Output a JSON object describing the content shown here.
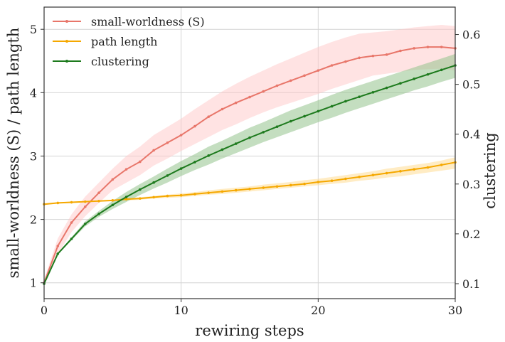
{
  "chart_data": {
    "type": "line",
    "title": "",
    "xlabel": "rewiring steps",
    "ylabel_left": "small-worldness (S) / path length",
    "ylabel_right": "clustering",
    "xlim": [
      0,
      30
    ],
    "ylim_left": [
      0.75,
      5.35
    ],
    "ylim_right": [
      0.07,
      0.655
    ],
    "x_ticks": [
      0,
      10,
      20,
      30
    ],
    "y_ticks_left": [
      1,
      2,
      3,
      4,
      5
    ],
    "y_ticks_right": [
      0.1,
      0.2,
      0.3,
      0.4,
      0.5,
      0.6
    ],
    "x_tick_labels": [
      "0",
      "10",
      "20",
      "30"
    ],
    "y_tick_labels_left": [
      "1",
      "2",
      "3",
      "4",
      "5"
    ],
    "y_tick_labels_right": [
      "0.1",
      "0.2",
      "0.3",
      "0.4",
      "0.5",
      "0.6"
    ],
    "grid": true,
    "legend_position": "top-left",
    "x": [
      0,
      1,
      2,
      3,
      4,
      5,
      6,
      7,
      8,
      9,
      10,
      11,
      12,
      13,
      14,
      15,
      16,
      17,
      18,
      19,
      20,
      21,
      22,
      23,
      24,
      25,
      26,
      27,
      28,
      29,
      30
    ],
    "series": [
      {
        "name": "small-worldness (S)",
        "axis": "left",
        "color": "#e8766a",
        "band_color": "#ffc7c7",
        "values": [
          1.0,
          1.58,
          1.95,
          2.2,
          2.42,
          2.63,
          2.79,
          2.91,
          3.09,
          3.21,
          3.33,
          3.47,
          3.62,
          3.74,
          3.84,
          3.93,
          4.02,
          4.11,
          4.19,
          4.27,
          4.35,
          4.43,
          4.49,
          4.55,
          4.58,
          4.6,
          4.66,
          4.7,
          4.72,
          4.72,
          4.7
        ],
        "band_lower": [
          0.95,
          1.45,
          1.8,
          2.05,
          2.26,
          2.46,
          2.58,
          2.7,
          2.85,
          2.96,
          3.08,
          3.19,
          3.3,
          3.41,
          3.5,
          3.6,
          3.69,
          3.77,
          3.84,
          3.91,
          3.98,
          4.06,
          4.13,
          4.2,
          4.27,
          4.3,
          4.33,
          4.36,
          4.37,
          4.38,
          4.35
        ],
        "band_upper": [
          1.05,
          1.7,
          2.08,
          2.36,
          2.58,
          2.8,
          3.0,
          3.15,
          3.33,
          3.46,
          3.59,
          3.74,
          3.88,
          4.02,
          4.14,
          4.25,
          4.35,
          4.45,
          4.54,
          4.63,
          4.72,
          4.8,
          4.87,
          4.93,
          4.95,
          4.97,
          5.0,
          5.03,
          5.05,
          5.07,
          5.05
        ]
      },
      {
        "name": "path length",
        "axis": "left",
        "color": "#f5a800",
        "band_color": "#ffd98a",
        "values": [
          2.24,
          2.26,
          2.27,
          2.28,
          2.29,
          2.3,
          2.32,
          2.33,
          2.35,
          2.37,
          2.38,
          2.4,
          2.42,
          2.44,
          2.46,
          2.48,
          2.5,
          2.52,
          2.54,
          2.56,
          2.59,
          2.61,
          2.64,
          2.67,
          2.7,
          2.73,
          2.76,
          2.79,
          2.82,
          2.86,
          2.9
        ],
        "band_lower": [
          2.23,
          2.25,
          2.26,
          2.27,
          2.28,
          2.29,
          2.3,
          2.31,
          2.33,
          2.34,
          2.35,
          2.37,
          2.39,
          2.4,
          2.42,
          2.44,
          2.46,
          2.48,
          2.5,
          2.52,
          2.54,
          2.56,
          2.58,
          2.61,
          2.63,
          2.66,
          2.68,
          2.71,
          2.74,
          2.77,
          2.8
        ],
        "band_upper": [
          2.25,
          2.27,
          2.28,
          2.29,
          2.3,
          2.31,
          2.33,
          2.35,
          2.37,
          2.39,
          2.41,
          2.43,
          2.46,
          2.48,
          2.5,
          2.52,
          2.55,
          2.57,
          2.59,
          2.62,
          2.64,
          2.67,
          2.7,
          2.73,
          2.76,
          2.8,
          2.83,
          2.86,
          2.89,
          2.93,
          2.98
        ]
      },
      {
        "name": "clustering",
        "axis": "right",
        "color": "#1d7a1d",
        "band_color": "#93c28c",
        "values": [
          0.1,
          0.16,
          0.19,
          0.22,
          0.24,
          0.258,
          0.274,
          0.289,
          0.303,
          0.317,
          0.331,
          0.344,
          0.357,
          0.369,
          0.381,
          0.393,
          0.404,
          0.415,
          0.426,
          0.436,
          0.446,
          0.456,
          0.466,
          0.475,
          0.484,
          0.493,
          0.502,
          0.511,
          0.52,
          0.529,
          0.538
        ],
        "band_lower": [
          0.099,
          0.158,
          0.187,
          0.215,
          0.234,
          0.25,
          0.264,
          0.278,
          0.291,
          0.303,
          0.316,
          0.328,
          0.339,
          0.351,
          0.362,
          0.373,
          0.384,
          0.394,
          0.404,
          0.414,
          0.424,
          0.433,
          0.443,
          0.452,
          0.461,
          0.47,
          0.479,
          0.488,
          0.496,
          0.505,
          0.513
        ],
        "band_upper": [
          0.101,
          0.162,
          0.193,
          0.225,
          0.246,
          0.266,
          0.284,
          0.3,
          0.315,
          0.331,
          0.346,
          0.36,
          0.375,
          0.387,
          0.4,
          0.413,
          0.424,
          0.436,
          0.448,
          0.458,
          0.468,
          0.479,
          0.489,
          0.498,
          0.507,
          0.516,
          0.525,
          0.534,
          0.543,
          0.552,
          0.561
        ]
      }
    ]
  }
}
